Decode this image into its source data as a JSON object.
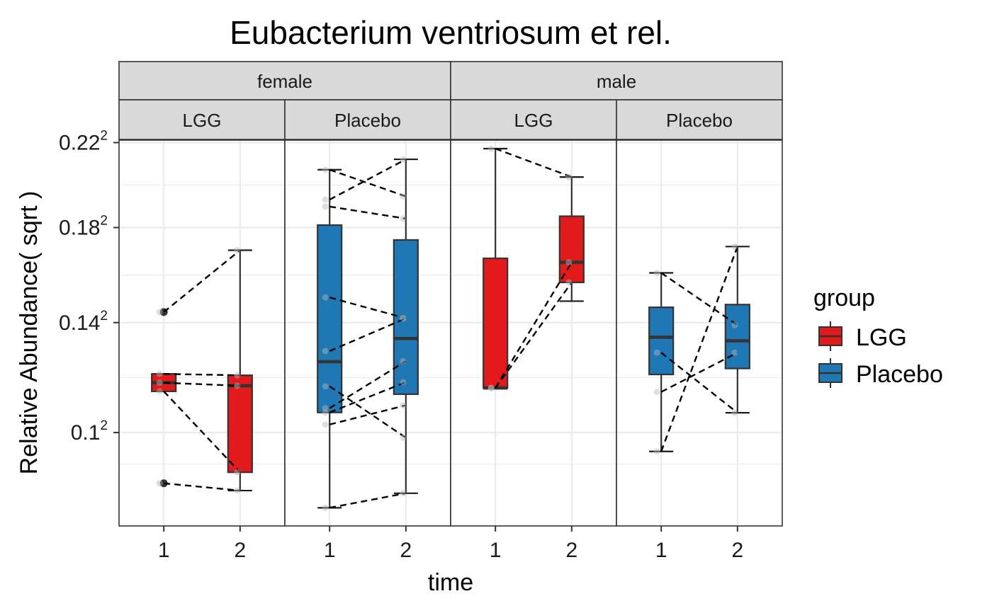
{
  "chart_data": {
    "type": "box",
    "title": "Eubacterium ventriosum et rel.",
    "xlabel": "time",
    "ylabel": "Relative Abundance( sqrt )",
    "y_scale": "sqrt",
    "ylim": [
      0.0713,
      0.2212
    ],
    "y_ticks": [
      {
        "value": 0.1,
        "base": "0.1",
        "exp": "2"
      },
      {
        "value": 0.14,
        "base": "0.14",
        "exp": "2"
      },
      {
        "value": 0.18,
        "base": "0.18",
        "exp": "2"
      },
      {
        "value": 0.22,
        "base": "0.22",
        "exp": "2"
      }
    ],
    "x_categories": [
      "1",
      "2"
    ],
    "grid": true,
    "legend": {
      "title": "group",
      "position": "right",
      "items": [
        {
          "label": "LGG",
          "color": "#e31a1c"
        },
        {
          "label": "Placebo",
          "color": "#1f78b4"
        }
      ]
    },
    "strips": [
      {
        "label": "female",
        "panels": [
          0,
          1
        ]
      },
      {
        "label": "male",
        "panels": [
          2,
          3
        ]
      }
    ],
    "panels": [
      {
        "sex": "female",
        "group": "LGG",
        "label": "LGG",
        "color": "#e31a1c",
        "boxes": [
          {
            "time": "1",
            "min": 0.1142,
            "q1": 0.1142,
            "median": 0.1173,
            "q3": 0.1205,
            "max": 0.1205,
            "outliers": [
              0.1442,
              0.0838
            ]
          },
          {
            "time": "2",
            "min": 0.0816,
            "q1": 0.0872,
            "median": 0.1162,
            "q3": 0.12,
            "max": 0.17
          }
        ],
        "pairs": [
          [
            0.1442,
            0.17
          ],
          [
            0.1205,
            0.12
          ],
          [
            0.1173,
            0.1162
          ],
          [
            0.1142,
            0.0872
          ],
          [
            0.0838,
            0.0816
          ]
        ]
      },
      {
        "sex": "female",
        "group": "Placebo",
        "label": "Placebo",
        "color": "#1f78b4",
        "boxes": [
          {
            "time": "1",
            "min": 0.0765,
            "q1": 0.1068,
            "median": 0.125,
            "q3": 0.1811,
            "max": 0.2068
          },
          {
            "time": "2",
            "min": 0.0808,
            "q1": 0.1132,
            "median": 0.1338,
            "q3": 0.1745,
            "max": 0.2118
          }
        ],
        "pairs": [
          [
            0.2068,
            0.1942
          ],
          [
            0.1927,
            0.2118
          ],
          [
            0.1895,
            0.184
          ],
          [
            0.1501,
            0.1417
          ],
          [
            0.129,
            0.1417
          ],
          [
            0.116,
            0.0983
          ],
          [
            0.1083,
            0.1252
          ],
          [
            0.1068,
            0.1175
          ],
          [
            0.1027,
            0.1093
          ],
          [
            0.0765,
            0.0808
          ]
        ]
      },
      {
        "sex": "male",
        "group": "LGG",
        "label": "LGG",
        "color": "#e31a1c",
        "boxes": [
          {
            "time": "1",
            "min": 0.1154,
            "q1": 0.1154,
            "median": 0.1154,
            "q3": 0.1665,
            "max": 0.217
          },
          {
            "time": "2",
            "min": 0.1486,
            "q1": 0.1563,
            "median": 0.1648,
            "q3": 0.1851,
            "max": 0.2033
          }
        ],
        "pairs": [
          [
            0.217,
            0.2033
          ],
          [
            0.1154,
            0.1648
          ],
          [
            0.1154,
            0.1563
          ]
        ]
      },
      {
        "sex": "male",
        "group": "Placebo",
        "label": "Placebo",
        "color": "#1f78b4",
        "boxes": [
          {
            "time": "1",
            "min": 0.0938,
            "q1": 0.1203,
            "median": 0.1343,
            "q3": 0.1461,
            "max": 0.1603
          },
          {
            "time": "2",
            "min": 0.1067,
            "q1": 0.1225,
            "median": 0.1329,
            "q3": 0.1472,
            "max": 0.1716
          }
        ],
        "pairs": [
          [
            0.1603,
            0.139
          ],
          [
            0.1284,
            0.1067
          ],
          [
            0.0938,
            0.1716
          ],
          [
            0.114,
            0.1284
          ]
        ]
      }
    ]
  }
}
